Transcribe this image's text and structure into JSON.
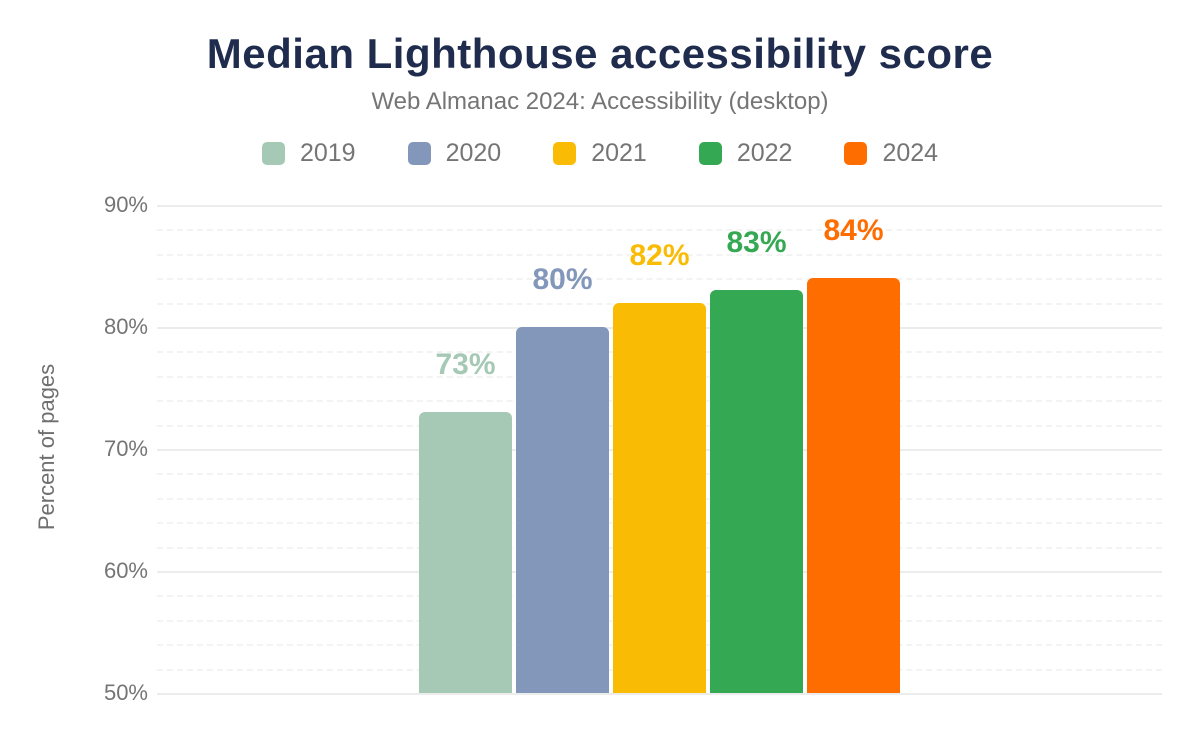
{
  "title": "Median Lighthouse accessibility score",
  "subtitle": "Web Almanac 2024: Accessibility (desktop)",
  "colors": {
    "background": "#ffffff",
    "title_text": "#1f2c4d",
    "subtitle_text": "#757575",
    "axis_text": "#757575",
    "grid_major": "#ececec",
    "grid_minor": "#f3f3f3"
  },
  "chart_data": {
    "type": "bar",
    "title": "Median Lighthouse accessibility score",
    "subtitle": "Web Almanac 2024: Accessibility (desktop)",
    "categories": [
      "2019",
      "2020",
      "2021",
      "2022",
      "2024"
    ],
    "values": [
      73,
      80,
      82,
      83,
      84
    ],
    "value_labels": [
      "73%",
      "80%",
      "82%",
      "83%",
      "84%"
    ],
    "series_colors": [
      "#a6c9b6",
      "#8297b9",
      "#f9bb03",
      "#35a854",
      "#fe6d00"
    ],
    "ylabel": "Percent of pages",
    "xlabel": "",
    "ylim": [
      50,
      90
    ],
    "yticks": [
      50,
      60,
      70,
      80,
      90
    ],
    "ytick_labels": [
      "50%",
      "60%",
      "70%",
      "80%",
      "90%"
    ],
    "minor_gridline_step": 2,
    "grid": true,
    "legend_position": "top",
    "bar_value_labels_shown": true,
    "x_axis_labels_shown": false
  }
}
